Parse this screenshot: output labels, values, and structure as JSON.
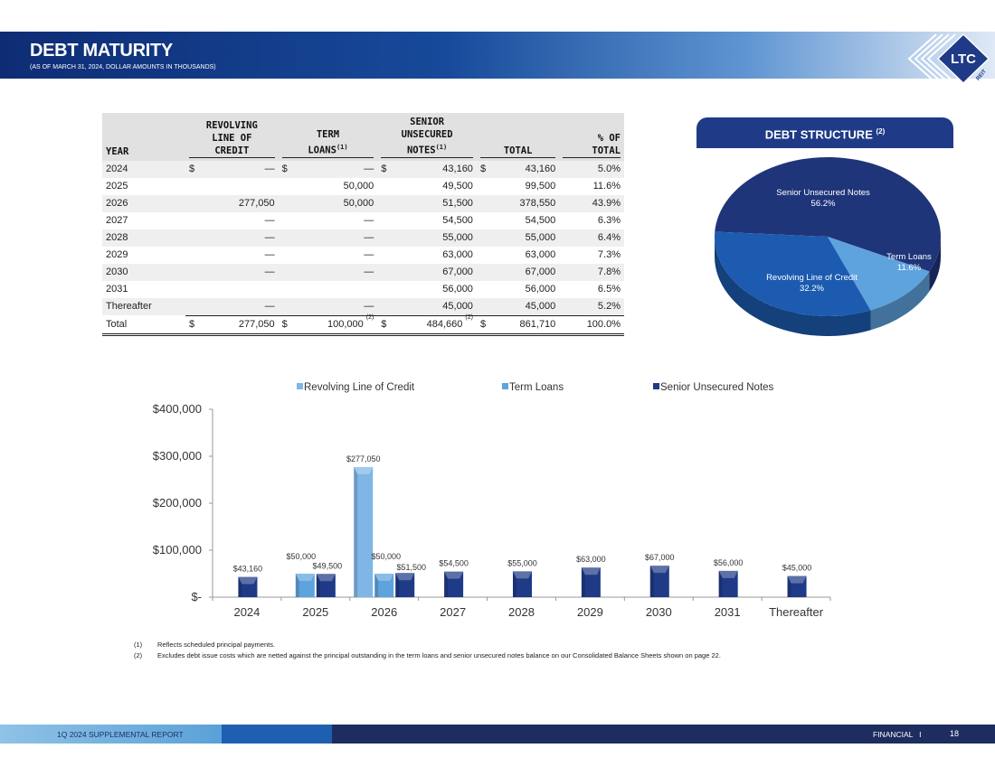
{
  "header": {
    "title": "DEBT MATURITY",
    "subtitle": "(AS OF MARCH 31, 2024, DOLLAR AMOUNTS IN THOUSANDS)",
    "logo_text": "LTC",
    "logo_subtext": "REIT",
    "band_colors": [
      "#0e2c74",
      "#5f95d2",
      "#dfe9f6"
    ]
  },
  "table": {
    "headers": {
      "year": "YEAR",
      "revolving_1": "REVOLVING",
      "revolving_2": "LINE OF",
      "revolving_3": "CREDIT",
      "term_1": "TERM",
      "term_2": "LOANS",
      "term_note": "(1)",
      "senior_1": "SENIOR",
      "senior_2": "UNSECURED",
      "senior_3": "NOTES",
      "senior_note": "(1)",
      "total": "TOTAL",
      "pct_1": "% OF",
      "pct_2": "TOTAL"
    },
    "rows": [
      {
        "year": "2024",
        "rev_dollar": "$",
        "rev": "—",
        "term_dollar": "$",
        "term": "—",
        "sen_dollar": "$",
        "sen": "43,160",
        "tot_dollar": "$",
        "tot": "43,160",
        "pct": "5.0%"
      },
      {
        "year": "2025",
        "rev_dollar": "",
        "rev": "",
        "term_dollar": "",
        "term": "50,000",
        "sen_dollar": "",
        "sen": "49,500",
        "tot_dollar": "",
        "tot": "99,500",
        "pct": "11.6%"
      },
      {
        "year": "2026",
        "rev_dollar": "",
        "rev": "277,050",
        "term_dollar": "",
        "term": "50,000",
        "sen_dollar": "",
        "sen": "51,500",
        "tot_dollar": "",
        "tot": "378,550",
        "pct": "43.9%"
      },
      {
        "year": "2027",
        "rev_dollar": "",
        "rev": "—",
        "term_dollar": "",
        "term": "—",
        "sen_dollar": "",
        "sen": "54,500",
        "tot_dollar": "",
        "tot": "54,500",
        "pct": "6.3%"
      },
      {
        "year": "2028",
        "rev_dollar": "",
        "rev": "—",
        "term_dollar": "",
        "term": "—",
        "sen_dollar": "",
        "sen": "55,000",
        "tot_dollar": "",
        "tot": "55,000",
        "pct": "6.4%"
      },
      {
        "year": "2029",
        "rev_dollar": "",
        "rev": "—",
        "term_dollar": "",
        "term": "—",
        "sen_dollar": "",
        "sen": "63,000",
        "tot_dollar": "",
        "tot": "63,000",
        "pct": "7.3%"
      },
      {
        "year": "2030",
        "rev_dollar": "",
        "rev": "—",
        "term_dollar": "",
        "term": "—",
        "sen_dollar": "",
        "sen": "67,000",
        "tot_dollar": "",
        "tot": "67,000",
        "pct": "7.8%"
      },
      {
        "year": "2031",
        "rev_dollar": "",
        "rev": "",
        "term_dollar": "",
        "term": "",
        "sen_dollar": "",
        "sen": "56,000",
        "tot_dollar": "",
        "tot": "56,000",
        "pct": "6.5%"
      },
      {
        "year": "Thereafter",
        "rev_dollar": "",
        "rev": "—",
        "term_dollar": "",
        "term": "—",
        "sen_dollar": "",
        "sen": "45,000",
        "tot_dollar": "",
        "tot": "45,000",
        "pct": "5.2%"
      }
    ],
    "total": {
      "year": "Total",
      "rev_dollar": "$",
      "rev": "277,050",
      "term_dollar": "$",
      "term": "100,000",
      "term_note": "(2)",
      "sen_dollar": "$",
      "sen": "484,660",
      "sen_note": "(2)",
      "tot_dollar": "$",
      "tot": "861,710",
      "pct": "100.0%"
    }
  },
  "pie": {
    "title": "DEBT STRUCTURE",
    "title_note": "(2)",
    "slices": [
      {
        "name": "Senior Unsecured Notes",
        "pct_label": "56.2%",
        "value": 56.2,
        "color": "#1f3579"
      },
      {
        "name": "Term Loans",
        "pct_label": "11.6%",
        "value": 11.6,
        "color": "#5ea3dd"
      },
      {
        "name": "Revolving Line of Credit",
        "pct_label": "32.2%",
        "value": 32.2,
        "color": "#1c5bb0"
      }
    ]
  },
  "chart_data": {
    "type": "bar",
    "categories": [
      "2024",
      "2025",
      "2026",
      "2027",
      "2028",
      "2029",
      "2030",
      "2031",
      "Thereafter"
    ],
    "series": [
      {
        "name": "Revolving Line of Credit",
        "color": "#7fb6e6",
        "values": [
          null,
          null,
          277050,
          null,
          null,
          null,
          null,
          null,
          null
        ],
        "labels": [
          "",
          "",
          "$277,050",
          "",
          "",
          "",
          "",
          "",
          ""
        ]
      },
      {
        "name": "Term Loans",
        "color": "#5ea3dd",
        "values": [
          null,
          50000,
          50000,
          null,
          null,
          null,
          null,
          null,
          null
        ],
        "labels": [
          "",
          "$50,000",
          "$50,000",
          "",
          "",
          "",
          "",
          "",
          ""
        ]
      },
      {
        "name": "Senior Unsecured Notes",
        "color": "#1f3a86",
        "values": [
          43160,
          49500,
          51500,
          54500,
          55000,
          63000,
          67000,
          56000,
          45000
        ],
        "labels": [
          "$43,160",
          "$49,500",
          "$51,500",
          "$54,500",
          "$55,000",
          "$63,000",
          "$67,000",
          "$56,000",
          "$45,000"
        ]
      }
    ],
    "ylim": [
      0,
      400000
    ],
    "yticks": [
      0,
      100000,
      200000,
      300000,
      400000
    ],
    "ytick_labels": [
      "$-",
      "$100,000",
      "$200,000",
      "$300,000",
      "$400,000"
    ],
    "legend_position": "top",
    "grid": false
  },
  "footnotes": [
    {
      "num": "(1)",
      "text": "Reflects scheduled principal payments."
    },
    {
      "num": "(2)",
      "text": "Excludes debt issue costs which are netted against the principal outstanding in the term loans and senior unsecured notes balance on our Consolidated Balance Sheets shown on page 22."
    }
  ],
  "footer": {
    "left": "1Q 2024 SUPPLEMENTAL REPORT",
    "right": "FINANCIAL   I",
    "page": "18"
  }
}
